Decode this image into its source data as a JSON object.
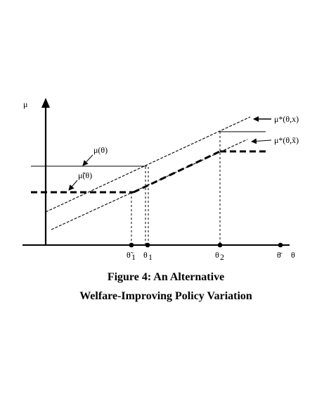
{
  "figure": {
    "caption_line1": "Figure 4: An Alternative",
    "caption_line2": "Welfare-Improving Policy Variation"
  },
  "axes": {
    "y_label": "μ",
    "x_label": "θ"
  },
  "x_ticks": {
    "theta_tilde_1": "θ̃",
    "theta_1": "θ",
    "theta_2": "θ",
    "theta_bar": "θ̄",
    "sub_1": "1",
    "sub_1b": "1",
    "sub_2": "2"
  },
  "curves": {
    "mu_theta": "μ(θ)",
    "mu_tilde_theta": "μ̃(θ)",
    "mu_star_x": "μ*(θ,x)",
    "mu_star_xtilde": "μ*(θ,x̃)"
  }
}
